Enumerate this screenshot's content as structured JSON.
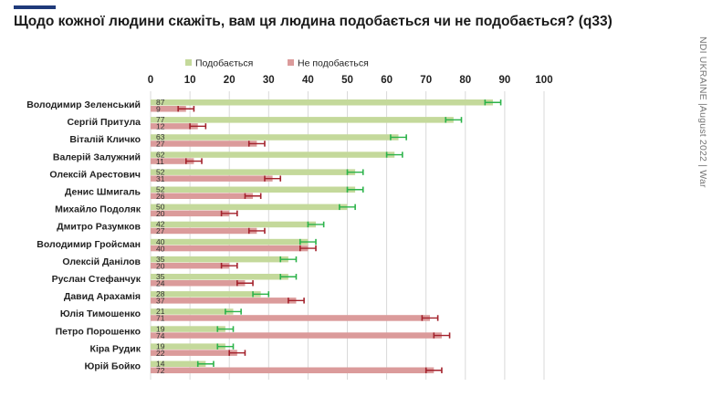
{
  "title": "Щодо кожної людини скажіть, вам ця людина подобається чи не подобається? (q33)",
  "side_note": "NDI UKRAINE |August 2022 | War",
  "colors": {
    "accent": "#1f3a7a",
    "like": "#c4d99b",
    "dislike": "#db9b9b",
    "like_error": "#2cb34a",
    "dislike_error": "#a3222c",
    "gridline": "#d9d9d9"
  },
  "chart_data": {
    "type": "bar",
    "orientation": "horizontal",
    "title": "Щодо кожної людини скажіть, вам ця людина подобається чи не подобається? (q33)",
    "xlim": [
      0,
      100
    ],
    "x_ticks": [
      "0",
      "10",
      "20",
      "30",
      "40",
      "50",
      "60",
      "70",
      "80",
      "90",
      "100"
    ],
    "x_tick_values": [
      0,
      10,
      20,
      30,
      40,
      50,
      60,
      70,
      80,
      90,
      100
    ],
    "grid": true,
    "legend_position": "top",
    "categories": [
      "Володимир Зеленський",
      "Сергій Притула",
      "Віталій Кличко",
      "Валерій Залужний",
      "Олексій Арестович",
      "Денис Шмигаль",
      "Михайло Подоляк",
      "Дмитро Разумков",
      "Володимир Гройсман",
      "Олексій Данілов",
      "Руслан Стефанчук",
      "Давид Арахамія",
      "Юлія Тимошенко",
      "Петро Порошенко",
      "Кіра Рудик",
      "Юрій Бойко"
    ],
    "series": [
      {
        "name": "Подобається",
        "value_labels": [
          "87",
          "77",
          "63",
          "62",
          "52",
          "52",
          "50",
          "42",
          "40",
          "35",
          "35",
          "28",
          "21",
          "19",
          "19",
          "14"
        ],
        "values": [
          87,
          77,
          63,
          62,
          52,
          52,
          50,
          42,
          40,
          35,
          35,
          28,
          21,
          19,
          19,
          14
        ],
        "error_margin": 2
      },
      {
        "name": "Не подобається",
        "value_labels": [
          "9",
          "12",
          "27",
          "11",
          "31",
          "26",
          "20",
          "27",
          "40",
          "20",
          "24",
          "37",
          "71",
          "74",
          "22",
          "72"
        ],
        "values": [
          9,
          12,
          27,
          11,
          31,
          26,
          20,
          27,
          40,
          20,
          24,
          37,
          71,
          74,
          22,
          72
        ],
        "error_margin": 2
      }
    ]
  }
}
